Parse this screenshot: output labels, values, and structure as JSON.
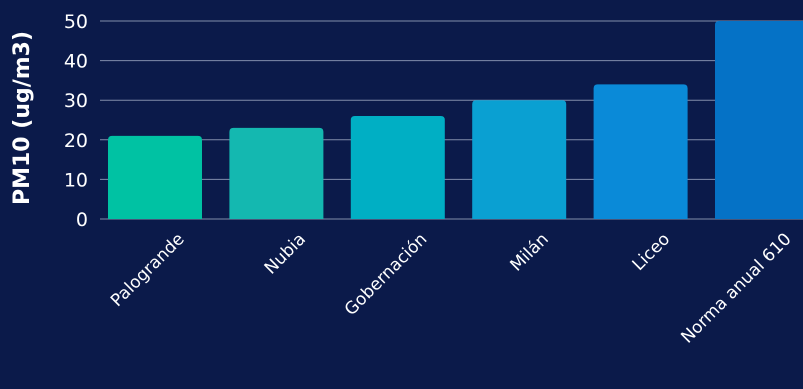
{
  "chart_data": {
    "type": "bar",
    "title": "",
    "xlabel": "",
    "ylabel": "PM10 (ug/m3)",
    "ylim": [
      0,
      50
    ],
    "yticks": [
      0,
      10,
      20,
      30,
      40,
      50
    ],
    "grid": true,
    "legend": "none",
    "categories": [
      "Palogrande",
      "Nubia",
      "Gobernación",
      "Milán",
      "Liceo",
      "Norma anual 610"
    ],
    "values": [
      21,
      23,
      26,
      30,
      34,
      50
    ],
    "colors": [
      "#00c2a3",
      "#14b8b0",
      "#00afc4",
      "#0aa0d2",
      "#0a8ad8",
      "#0572c6"
    ]
  },
  "colors": {
    "background": "#0b1a4a",
    "gridline": "#a9b4cc",
    "text": "#ffffff"
  }
}
